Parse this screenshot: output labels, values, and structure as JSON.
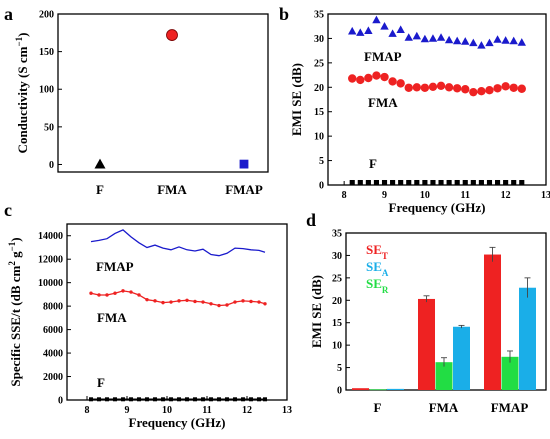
{
  "colors": {
    "F": "#000000",
    "FMA": "#ee2222",
    "FMAP": "#1a1acc",
    "SE_T": "#ee2222",
    "SE_A": "#1aaee8",
    "SE_R": "#22dd44"
  },
  "chart_data": [
    {
      "panel_label": "a",
      "type": "scatter",
      "ylabel_main": "Conductivity (S cm",
      "ylabel_sup": "−1",
      "ylabel_end": ")",
      "ylim": [
        -10,
        200
      ],
      "yticks": [
        "0",
        "50",
        "100",
        "150",
        "200"
      ],
      "categories": [
        "F",
        "FMA",
        "FMAP"
      ],
      "values": [
        0.5,
        172,
        0.5
      ],
      "markers": [
        "triangle",
        "circle",
        "square"
      ]
    },
    {
      "panel_label": "b",
      "type": "scatter",
      "xlabel": "Frequency (GHz)",
      "ylabel": "EMI SE (dB)",
      "xlim": [
        7.6,
        13
      ],
      "ylim": [
        0,
        35
      ],
      "xticks": [
        "8",
        "9",
        "10",
        "11",
        "12",
        "13"
      ],
      "yticks": [
        "0",
        "5",
        "10",
        "15",
        "20",
        "25",
        "30",
        "35"
      ],
      "x": [
        8.2,
        8.4,
        8.6,
        8.8,
        9.0,
        9.2,
        9.4,
        9.6,
        9.8,
        10.0,
        10.2,
        10.4,
        10.6,
        10.8,
        11.0,
        11.2,
        11.4,
        11.6,
        11.8,
        12.0,
        12.2,
        12.4
      ],
      "series": [
        {
          "name": "FMAP",
          "marker": "triangle",
          "values": [
            31.5,
            31.2,
            31.6,
            33.8,
            32.5,
            31.0,
            31.8,
            30.2,
            30.5,
            29.9,
            30.0,
            30.2,
            29.7,
            29.5,
            29.4,
            29.1,
            28.6,
            29.1,
            29.8,
            29.6,
            29.5,
            29.2
          ]
        },
        {
          "name": "FMA",
          "marker": "circle",
          "values": [
            21.8,
            21.5,
            21.9,
            22.4,
            22.1,
            21.2,
            20.8,
            19.9,
            20.0,
            19.9,
            20.1,
            20.3,
            20.0,
            19.8,
            19.6,
            19.0,
            19.2,
            19.4,
            19.8,
            20.2,
            19.9,
            19.7
          ]
        },
        {
          "name": "F",
          "marker": "square",
          "values": [
            0.5,
            0.5,
            0.5,
            0.5,
            0.5,
            0.5,
            0.5,
            0.5,
            0.5,
            0.5,
            0.5,
            0.5,
            0.5,
            0.5,
            0.5,
            0.5,
            0.5,
            0.5,
            0.5,
            0.5,
            0.5,
            0.5
          ]
        }
      ]
    },
    {
      "panel_label": "c",
      "type": "line",
      "xlabel": "Frequency (GHz)",
      "ylabel_main": "Specific SSE/t (dB cm",
      "ylabel_sup1": "2",
      "ylabel_mid": " g",
      "ylabel_sup2": "−1",
      "ylabel_end": ")",
      "xlim": [
        7.5,
        13
      ],
      "ylim": [
        0,
        15000
      ],
      "xticks": [
        "8",
        "9",
        "10",
        "11",
        "12",
        "13"
      ],
      "yticks": [
        "0",
        "2000",
        "4000",
        "6000",
        "8000",
        "10000",
        "12000",
        "14000"
      ],
      "x": [
        8.1,
        8.3,
        8.5,
        8.7,
        8.9,
        9.1,
        9.3,
        9.5,
        9.7,
        9.9,
        10.1,
        10.3,
        10.5,
        10.7,
        10.9,
        11.1,
        11.3,
        11.5,
        11.7,
        11.9,
        12.1,
        12.3,
        12.45
      ],
      "series": [
        {
          "name": "FMAP",
          "values": [
            13500,
            13600,
            13750,
            14200,
            14500,
            13900,
            13400,
            13000,
            13200,
            12950,
            12800,
            13050,
            12800,
            12700,
            12850,
            12400,
            12300,
            12500,
            12950,
            12900,
            12800,
            12750,
            12600
          ]
        },
        {
          "name": "FMA",
          "values": [
            9100,
            8950,
            8950,
            9100,
            9300,
            9200,
            8950,
            8550,
            8450,
            8300,
            8350,
            8450,
            8500,
            8400,
            8350,
            8200,
            8050,
            8100,
            8350,
            8450,
            8400,
            8350,
            8200
          ]
        },
        {
          "name": "F",
          "values": [
            60,
            60,
            60,
            60,
            60,
            60,
            60,
            60,
            60,
            60,
            60,
            60,
            60,
            60,
            60,
            60,
            60,
            60,
            60,
            60,
            60,
            60,
            60
          ]
        }
      ]
    },
    {
      "panel_label": "d",
      "type": "bar",
      "ylabel": "EMI SE (dB)",
      "ylim": [
        0,
        35
      ],
      "yticks": [
        "0",
        "5",
        "10",
        "15",
        "20",
        "25",
        "30",
        "35"
      ],
      "categories": [
        "F",
        "FMA",
        "FMAP"
      ],
      "series": [
        {
          "name": "SE",
          "sub": "T",
          "values": [
            0.4,
            20.3,
            30.2
          ],
          "errors": [
            0.1,
            0.7,
            1.6
          ]
        },
        {
          "name": "SE",
          "sub": "R",
          "values": [
            0.15,
            6.2,
            7.4
          ],
          "errors": [
            0.05,
            1.0,
            1.3
          ]
        },
        {
          "name": "SE",
          "sub": "A",
          "values": [
            0.25,
            14.1,
            22.8
          ],
          "errors": [
            0.05,
            0.3,
            2.2
          ]
        }
      ],
      "legend_order": [
        0,
        2,
        1
      ]
    }
  ]
}
